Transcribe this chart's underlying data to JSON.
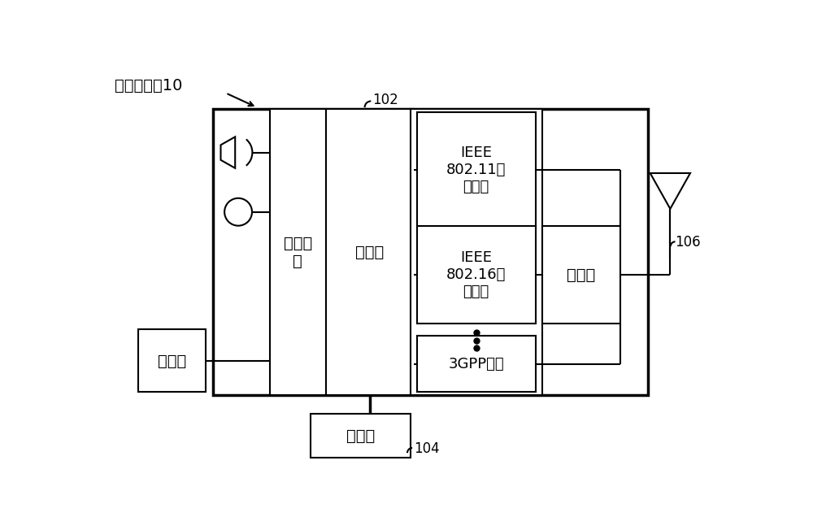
{
  "bg_color": "#ffffff",
  "line_color": "#000000",
  "title_label": "计算机终端10",
  "processor_label": "处理器",
  "user_iface_label": "用户接\n口",
  "display_label": "显示器",
  "storage_label": "存储器",
  "coupler_label": "耦合器",
  "ieee80211_label": "IEEE\n802.11网\n络接口",
  "ieee80216_label": "IEEE\n802.16网\n络接口",
  "gpp_label": "3GPP接口",
  "label_102": "102",
  "label_104": "104",
  "label_106": "106",
  "font_size_zh": 14,
  "font_size_en": 13,
  "font_size_num": 12,
  "lw_thin": 1.5,
  "lw_thick": 2.5
}
